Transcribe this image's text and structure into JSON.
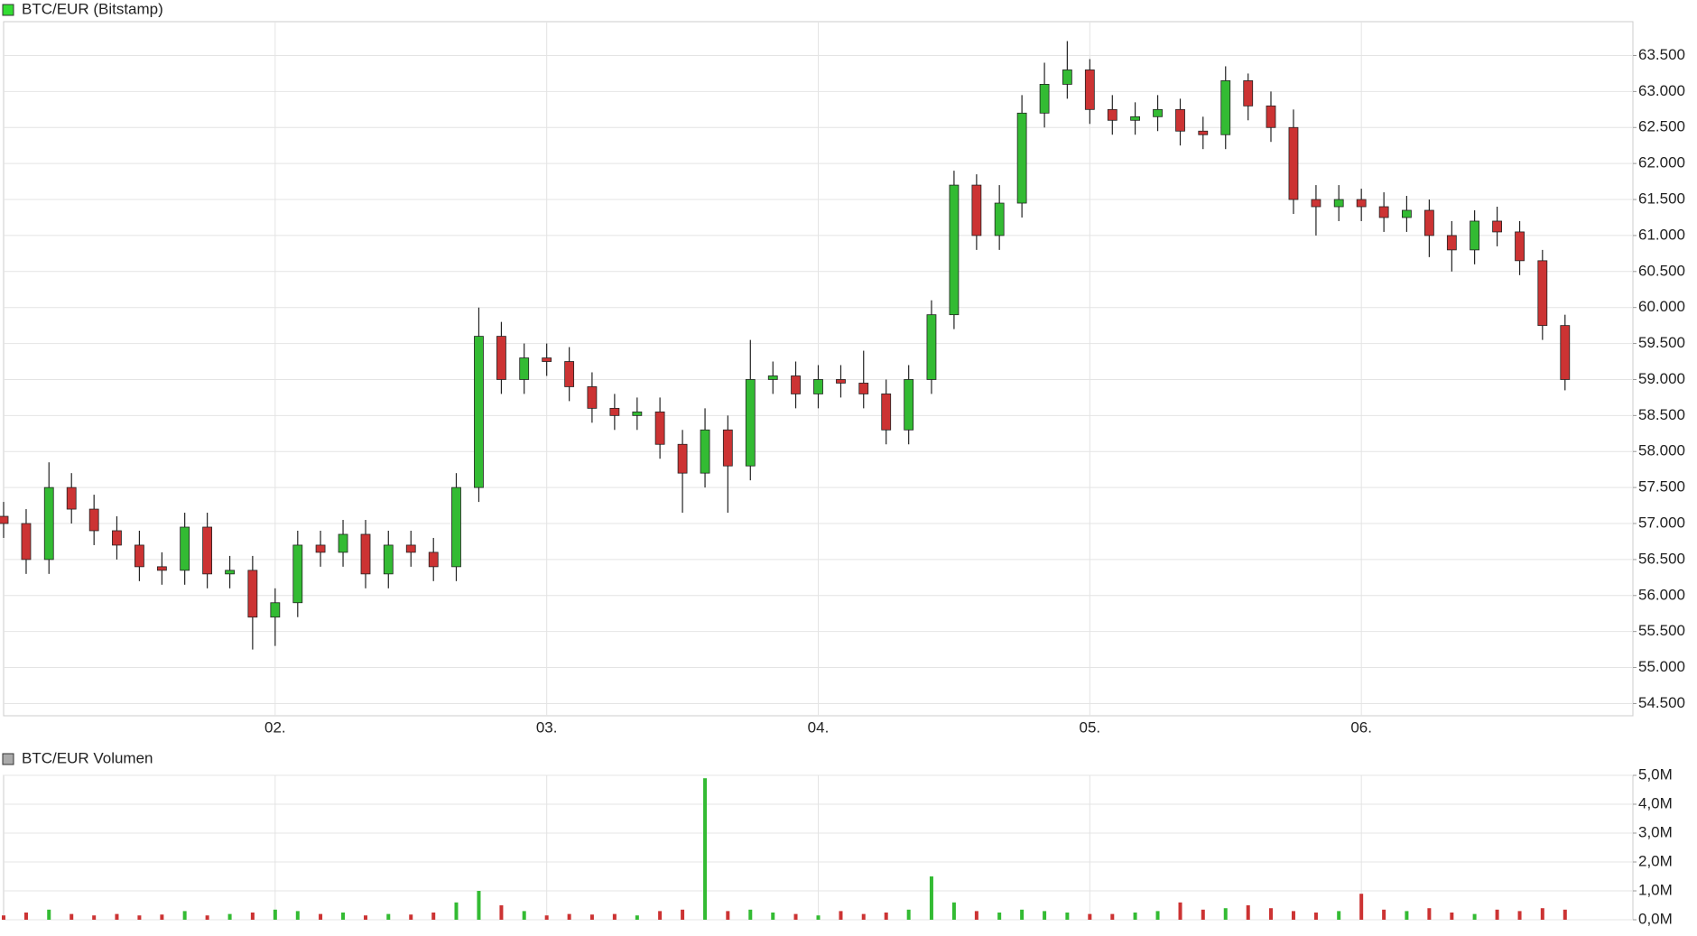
{
  "chart_data": [
    {
      "type": "candlestick",
      "series": [
        {
          "name": "BTC/EUR (Bitstamp)",
          "color": "#33dd33",
          "up_color": "#33bb33",
          "down_color": "#cc3333",
          "x": [
            1,
            1.083,
            1.167,
            1.25,
            1.333,
            1.417,
            1.5,
            1.583,
            1.667,
            1.75,
            1.833,
            1.917,
            2,
            2.083,
            2.167,
            2.25,
            2.333,
            2.417,
            2.5,
            2.583,
            2.667,
            2.75,
            2.833,
            2.917,
            3,
            3.083,
            3.167,
            3.25,
            3.333,
            3.417,
            3.5,
            3.583,
            3.667,
            3.75,
            3.833,
            3.917,
            4,
            4.083,
            4.167,
            4.25,
            4.333,
            4.417,
            4.5,
            4.583,
            4.667,
            4.75,
            4.833,
            4.917,
            5,
            5.083,
            5.167,
            5.25,
            5.333,
            5.417,
            5.5,
            5.583,
            5.667,
            5.75,
            5.833,
            5.917,
            6,
            6.083,
            6.167,
            6.25,
            6.333,
            6.417,
            6.5,
            6.583,
            6.667,
            6.75
          ],
          "open": [
            57100,
            57000,
            56500,
            57500,
            57200,
            56900,
            56700,
            56400,
            56350,
            56950,
            56300,
            56350,
            55700,
            55900,
            56700,
            56600,
            56850,
            56300,
            56700,
            56600,
            56400,
            57500,
            59600,
            59000,
            59300,
            59250,
            58900,
            58600,
            58500,
            58550,
            58100,
            57700,
            58300,
            57800,
            59000,
            59050,
            58800,
            59000,
            58950,
            58800,
            58300,
            59000,
            59900,
            61700,
            61000,
            61450,
            62700,
            63100,
            63300,
            62750,
            62600,
            62650,
            62750,
            62450,
            62400,
            63150,
            62800,
            62500,
            61500,
            61400,
            61500,
            61400,
            61250,
            61350,
            61000,
            60800,
            61200,
            61050,
            60650,
            59750
          ],
          "high": [
            57300,
            57200,
            57850,
            57700,
            57400,
            57100,
            56900,
            56600,
            57150,
            57150,
            56550,
            56550,
            56100,
            56900,
            56900,
            57050,
            57050,
            56900,
            56900,
            56800,
            57700,
            60000,
            59800,
            59500,
            59500,
            59450,
            59100,
            58800,
            58750,
            58750,
            58300,
            58600,
            58500,
            59550,
            59250,
            59250,
            59200,
            59200,
            59400,
            59000,
            59200,
            60100,
            61900,
            61850,
            61700,
            62950,
            63400,
            63700,
            63450,
            62950,
            62850,
            62950,
            62900,
            62650,
            63350,
            63250,
            63000,
            62750,
            61700,
            61700,
            61650,
            61600,
            61550,
            61500,
            61200,
            61350,
            61400,
            61200,
            60800,
            59900
          ],
          "low": [
            56800,
            56300,
            56300,
            57000,
            56700,
            56500,
            56200,
            56150,
            56150,
            56100,
            56100,
            55250,
            55300,
            55700,
            56400,
            56400,
            56100,
            56100,
            56400,
            56200,
            56200,
            57300,
            58800,
            58800,
            59050,
            58700,
            58400,
            58300,
            58300,
            57900,
            57150,
            57500,
            57150,
            57600,
            58800,
            58600,
            58600,
            58750,
            58600,
            58100,
            58100,
            58800,
            59700,
            60800,
            60800,
            61250,
            62500,
            62900,
            62550,
            62400,
            62400,
            62450,
            62250,
            62200,
            62200,
            62600,
            62300,
            61300,
            61000,
            61200,
            61200,
            61050,
            61050,
            60700,
            60500,
            60600,
            60850,
            60450,
            59550,
            58850
          ],
          "close": [
            57000,
            56500,
            57500,
            57200,
            56900,
            56700,
            56400,
            56350,
            56950,
            56300,
            56350,
            55700,
            55900,
            56700,
            56600,
            56850,
            56300,
            56700,
            56600,
            56400,
            57500,
            59600,
            59000,
            59300,
            59250,
            58900,
            58600,
            58500,
            58550,
            58100,
            57700,
            58300,
            57800,
            59000,
            59050,
            58800,
            59000,
            58950,
            58800,
            58300,
            59000,
            59900,
            61700,
            61000,
            61450,
            62700,
            63100,
            63300,
            62750,
            62600,
            62650,
            62750,
            62450,
            62400,
            63150,
            62800,
            62500,
            61500,
            61400,
            61500,
            61400,
            61250,
            61350,
            61000,
            60800,
            61200,
            61050,
            60650,
            59750,
            59000
          ]
        }
      ],
      "xlim": [
        1,
        7
      ],
      "xticks": [
        {
          "value": 2,
          "label": "02."
        },
        {
          "value": 3,
          "label": "03."
        },
        {
          "value": 4,
          "label": "04."
        },
        {
          "value": 5,
          "label": "05."
        },
        {
          "value": 6,
          "label": "06."
        }
      ],
      "ylim": [
        54330,
        63970
      ],
      "yticks": [
        {
          "value": 54500,
          "label": "54.500"
        },
        {
          "value": 55000,
          "label": "55.000"
        },
        {
          "value": 55500,
          "label": "55.500"
        },
        {
          "value": 56000,
          "label": "56.000"
        },
        {
          "value": 56500,
          "label": "56.500"
        },
        {
          "value": 57000,
          "label": "57.000"
        },
        {
          "value": 57500,
          "label": "57.500"
        },
        {
          "value": 58000,
          "label": "58.000"
        },
        {
          "value": 58500,
          "label": "58.500"
        },
        {
          "value": 59000,
          "label": "59.000"
        },
        {
          "value": 59500,
          "label": "59.500"
        },
        {
          "value": 60000,
          "label": "60.000"
        },
        {
          "value": 60500,
          "label": "60.500"
        },
        {
          "value": 61000,
          "label": "61.000"
        },
        {
          "value": 61500,
          "label": "61.500"
        },
        {
          "value": 62000,
          "label": "62.000"
        },
        {
          "value": 62500,
          "label": "62.500"
        },
        {
          "value": 63000,
          "label": "63.000"
        },
        {
          "value": 63500,
          "label": "63.500"
        }
      ],
      "grid": true
    },
    {
      "type": "volume",
      "series": [
        {
          "name": "BTC/EUR Volumen",
          "color": "#aaaaaa",
          "x": [
            1,
            1.083,
            1.167,
            1.25,
            1.333,
            1.417,
            1.5,
            1.583,
            1.667,
            1.75,
            1.833,
            1.917,
            2,
            2.083,
            2.167,
            2.25,
            2.333,
            2.417,
            2.5,
            2.583,
            2.667,
            2.75,
            2.833,
            2.917,
            3,
            3.083,
            3.167,
            3.25,
            3.333,
            3.417,
            3.5,
            3.583,
            3.667,
            3.75,
            3.833,
            3.917,
            4,
            4.083,
            4.167,
            4.25,
            4.333,
            4.417,
            4.5,
            4.583,
            4.667,
            4.75,
            4.833,
            4.917,
            5,
            5.083,
            5.167,
            5.25,
            5.333,
            5.417,
            5.5,
            5.583,
            5.667,
            5.75,
            5.833,
            5.917,
            6,
            6.083,
            6.167,
            6.25,
            6.333,
            6.417,
            6.5,
            6.583,
            6.667,
            6.75
          ],
          "values": [
            150000,
            250000,
            350000,
            200000,
            150000,
            200000,
            150000,
            180000,
            300000,
            150000,
            200000,
            250000,
            350000,
            300000,
            200000,
            250000,
            150000,
            200000,
            180000,
            250000,
            600000,
            1000000,
            500000,
            300000,
            150000,
            200000,
            180000,
            200000,
            150000,
            300000,
            350000,
            4900000,
            300000,
            350000,
            250000,
            200000,
            150000,
            300000,
            200000,
            250000,
            350000,
            1500000,
            600000,
            300000,
            250000,
            350000,
            300000,
            250000,
            200000,
            200000,
            250000,
            300000,
            600000,
            350000,
            400000,
            500000,
            400000,
            300000,
            250000,
            300000,
            900000,
            350000,
            300000,
            400000,
            250000,
            200000,
            350000,
            300000,
            400000,
            350000
          ]
        }
      ],
      "xlim": [
        1,
        7
      ],
      "ylim": [
        0,
        5000000
      ],
      "yticks": [
        {
          "value": 0,
          "label": "0,0M"
        },
        {
          "value": 1000000,
          "label": "1,0M"
        },
        {
          "value": 2000000,
          "label": "2,0M"
        },
        {
          "value": 3000000,
          "label": "3,0M"
        },
        {
          "value": 4000000,
          "label": "4,0M"
        },
        {
          "value": 5000000,
          "label": "5,0M"
        }
      ],
      "grid": true
    }
  ]
}
